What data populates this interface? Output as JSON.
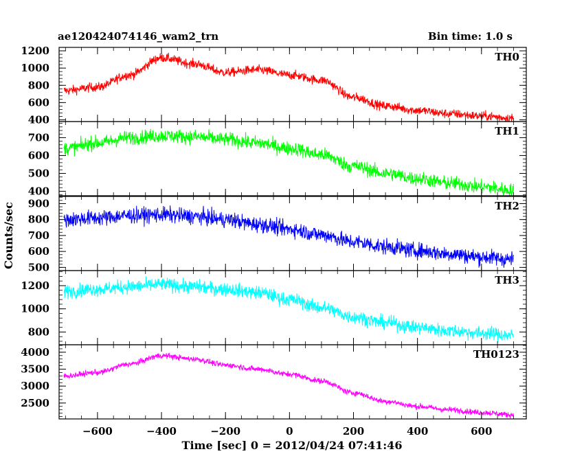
{
  "header": {
    "title": "ae120424074146_wam2_trn",
    "bin_time": "Bin time: 1.0 s"
  },
  "chart_data": {
    "type": "line",
    "xlabel": "Time [sec] 0 = 2012/04/24 07:41:46",
    "ylabel": "Counts/sec",
    "xlim": [
      -720,
      740
    ],
    "x_ticks": [
      -600,
      -400,
      -200,
      0,
      200,
      400,
      600
    ],
    "x_tick_labels": [
      "−600",
      "−400",
      "−200",
      "0",
      "200",
      "400",
      "600"
    ],
    "x_range": [
      -705,
      700
    ],
    "bin_time_s": 1.0,
    "panels": [
      {
        "name": "TH0",
        "color": "#ff0000",
        "ylim": [
          380,
          1240
        ],
        "y_ticks": [
          400,
          600,
          800,
          1000,
          1200
        ],
        "y_tick_labels": [
          "400",
          "600",
          "800",
          "1000",
          "1200"
        ],
        "noise": 38,
        "profile": [
          [
            -700,
            740
          ],
          [
            -600,
            780
          ],
          [
            -500,
            920
          ],
          [
            -400,
            1120
          ],
          [
            -300,
            1050
          ],
          [
            -200,
            950
          ],
          [
            -100,
            980
          ],
          [
            0,
            920
          ],
          [
            100,
            860
          ],
          [
            200,
            660
          ],
          [
            300,
            560
          ],
          [
            400,
            510
          ],
          [
            500,
            470
          ],
          [
            600,
            445
          ],
          [
            700,
            420
          ]
        ]
      },
      {
        "name": "TH1",
        "color": "#00ff00",
        "ylim": [
          375,
          790
        ],
        "y_ticks": [
          400,
          500,
          600,
          700
        ],
        "y_tick_labels": [
          "400",
          "500",
          "600",
          "700"
        ],
        "noise": 28,
        "profile": [
          [
            -700,
            640
          ],
          [
            -600,
            670
          ],
          [
            -500,
            700
          ],
          [
            -400,
            710
          ],
          [
            -300,
            705
          ],
          [
            -200,
            690
          ],
          [
            -100,
            670
          ],
          [
            0,
            640
          ],
          [
            100,
            605
          ],
          [
            200,
            540
          ],
          [
            300,
            500
          ],
          [
            400,
            470
          ],
          [
            500,
            445
          ],
          [
            600,
            425
          ],
          [
            700,
            405
          ]
        ]
      },
      {
        "name": "TH2",
        "color": "#0000ff",
        "ylim": [
          480,
          945
        ],
        "y_ticks": [
          500,
          600,
          700,
          800,
          900
        ],
        "y_tick_labels": [
          "500",
          "600",
          "700",
          "800",
          "900"
        ],
        "noise": 35,
        "profile": [
          [
            -700,
            800
          ],
          [
            -600,
            810
          ],
          [
            -500,
            825
          ],
          [
            -400,
            830
          ],
          [
            -300,
            820
          ],
          [
            -200,
            800
          ],
          [
            -100,
            770
          ],
          [
            0,
            740
          ],
          [
            100,
            705
          ],
          [
            200,
            660
          ],
          [
            300,
            630
          ],
          [
            400,
            605
          ],
          [
            500,
            585
          ],
          [
            600,
            565
          ],
          [
            700,
            550
          ]
        ]
      },
      {
        "name": "TH3",
        "color": "#00ffff",
        "ylim": [
          690,
          1330
        ],
        "y_ticks": [
          800,
          1000,
          1200
        ],
        "y_tick_labels": [
          "800",
          "1000",
          "1200"
        ],
        "noise": 42,
        "profile": [
          [
            -700,
            1150
          ],
          [
            -600,
            1170
          ],
          [
            -500,
            1190
          ],
          [
            -400,
            1210
          ],
          [
            -300,
            1190
          ],
          [
            -200,
            1170
          ],
          [
            -100,
            1140
          ],
          [
            0,
            1080
          ],
          [
            100,
            1010
          ],
          [
            200,
            930
          ],
          [
            300,
            880
          ],
          [
            400,
            840
          ],
          [
            500,
            810
          ],
          [
            600,
            790
          ],
          [
            700,
            770
          ]
        ]
      },
      {
        "name": "TH0123",
        "color": "#ff00ff",
        "ylim": [
          2030,
          4220
        ],
        "y_ticks": [
          2500,
          3000,
          3500,
          4000
        ],
        "y_tick_labels": [
          "2500",
          "3000",
          "3500",
          "4000"
        ],
        "noise": 60,
        "profile": [
          [
            -700,
            3300
          ],
          [
            -600,
            3400
          ],
          [
            -500,
            3650
          ],
          [
            -400,
            3900
          ],
          [
            -300,
            3800
          ],
          [
            -200,
            3620
          ],
          [
            -100,
            3500
          ],
          [
            0,
            3350
          ],
          [
            100,
            3150
          ],
          [
            200,
            2800
          ],
          [
            300,
            2550
          ],
          [
            400,
            2400
          ],
          [
            500,
            2300
          ],
          [
            600,
            2220
          ],
          [
            700,
            2150
          ]
        ]
      }
    ]
  }
}
